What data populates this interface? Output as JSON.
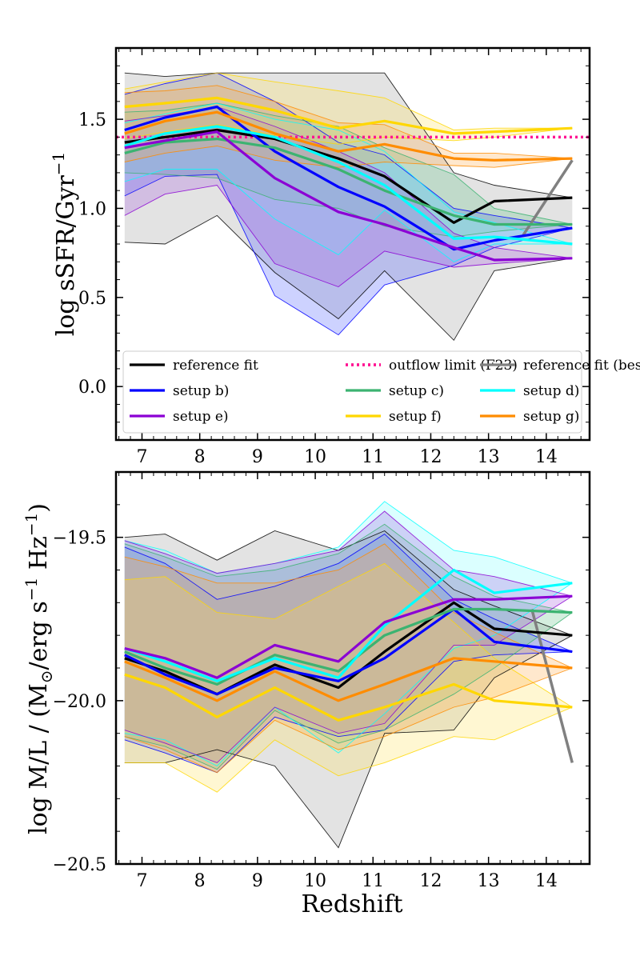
{
  "chart_data": [
    {
      "type": "line",
      "panel": "top",
      "ylabel": "log sSFR/Gyr⁻¹",
      "ylabel_main": "log sSFR/Gyr",
      "ylabel_sup": "−1",
      "xlabel": "",
      "xlim": [
        6.55,
        14.75
      ],
      "ylim": [
        -0.3,
        1.9
      ],
      "xticks": [
        7,
        8,
        9,
        10,
        11,
        12,
        13,
        14
      ],
      "xtick_labels": [
        "7",
        "8",
        "9",
        "10",
        "11",
        "12",
        "13",
        "14"
      ],
      "yticks": [
        0.0,
        0.5,
        1.0,
        1.5
      ],
      "ytick_labels": [
        "0.0",
        "0.5",
        "1.0",
        "1.5"
      ],
      "legend": {
        "position": "lower-left",
        "entries": [
          {
            "label": "reference fit",
            "color": "#000000",
            "style": "solid"
          },
          {
            "label": "outflow limit (F23)",
            "color": "#ff1493",
            "style": "dotted"
          },
          {
            "label": "reference fit (best-fit)",
            "color": "#808080",
            "style": "solid"
          },
          {
            "label": "setup b)",
            "color": "#0000ff",
            "style": "solid"
          },
          {
            "label": "setup c)",
            "color": "#3cb371",
            "style": "solid"
          },
          {
            "label": "setup d)",
            "color": "#00ffff",
            "style": "solid"
          },
          {
            "label": "setup e)",
            "color": "#8b00d4",
            "style": "solid"
          },
          {
            "label": "setup f)",
            "color": "#ffd700",
            "style": "solid"
          },
          {
            "label": "setup g)",
            "color": "#ff8c00",
            "style": "solid"
          }
        ]
      },
      "hline": {
        "name": "outflow limit (F23)",
        "y": 1.4,
        "color": "#ff1493"
      },
      "x": [
        6.7,
        7.4,
        8.3,
        9.3,
        10.4,
        11.2,
        12.4,
        13.1,
        14.45
      ],
      "series": [
        {
          "name": "reference fit",
          "color": "#000000",
          "fill": "#999999",
          "values": [
            1.37,
            1.4,
            1.44,
            1.39,
            1.28,
            1.18,
            0.92,
            1.04,
            1.06
          ],
          "lower": [
            0.81,
            0.8,
            0.96,
            0.64,
            0.38,
            0.65,
            0.26,
            0.65,
            0.72
          ],
          "upper": [
            1.76,
            1.74,
            1.76,
            1.76,
            1.76,
            1.76,
            1.2,
            1.13,
            1.06
          ]
        },
        {
          "name": "setup b)",
          "color": "#0000ff",
          "fill": "#4d5dff",
          "values": [
            1.44,
            1.51,
            1.57,
            1.32,
            1.12,
            1.01,
            0.77,
            0.82,
            0.89
          ],
          "lower": [
            1.07,
            1.18,
            1.19,
            0.51,
            0.29,
            0.57,
            0.68,
            0.78,
            0.89
          ],
          "upper": [
            1.64,
            1.7,
            1.76,
            1.6,
            1.37,
            1.3,
            1.0,
            0.96,
            0.89
          ]
        },
        {
          "name": "setup c)",
          "color": "#3cb371",
          "fill": "#66c28a",
          "values": [
            1.31,
            1.37,
            1.39,
            1.34,
            1.22,
            1.1,
            0.96,
            0.91,
            0.91
          ],
          "lower": [
            1.2,
            1.19,
            1.17,
            1.05,
            1.0,
            0.9,
            0.84,
            0.87,
            0.91
          ],
          "upper": [
            1.54,
            1.55,
            1.59,
            1.52,
            1.46,
            1.34,
            1.19,
            1.0,
            0.91
          ]
        },
        {
          "name": "setup d)",
          "color": "#00ffff",
          "fill": "#7fffff",
          "values": [
            1.35,
            1.42,
            1.46,
            1.4,
            1.26,
            1.13,
            0.83,
            0.84,
            0.8
          ],
          "lower": [
            1.15,
            1.22,
            1.22,
            0.94,
            0.74,
            0.99,
            0.7,
            0.8,
            0.8
          ],
          "upper": [
            1.48,
            1.53,
            1.59,
            1.5,
            1.44,
            1.32,
            0.98,
            0.92,
            0.8
          ]
        },
        {
          "name": "setup e)",
          "color": "#8b00d4",
          "fill": "#a45fe0",
          "values": [
            1.34,
            1.38,
            1.43,
            1.17,
            0.98,
            0.91,
            0.78,
            0.71,
            0.72
          ],
          "lower": [
            0.96,
            1.08,
            1.13,
            0.69,
            0.56,
            0.76,
            0.67,
            0.69,
            0.72
          ],
          "upper": [
            1.49,
            1.52,
            1.57,
            1.46,
            1.32,
            1.2,
            0.86,
            0.78,
            0.72
          ]
        },
        {
          "name": "setup f)",
          "color": "#ffd700",
          "fill": "#ffe45c",
          "values": [
            1.57,
            1.59,
            1.62,
            1.55,
            1.45,
            1.49,
            1.42,
            1.43,
            1.45
          ],
          "lower": [
            1.39,
            1.43,
            1.47,
            1.41,
            1.36,
            1.4,
            1.38,
            1.4,
            1.45
          ],
          "upper": [
            1.67,
            1.71,
            1.76,
            1.71,
            1.66,
            1.62,
            1.44,
            1.45,
            1.45
          ]
        },
        {
          "name": "setup g)",
          "color": "#ff8c00",
          "fill": "#ffad4d",
          "values": [
            1.42,
            1.49,
            1.54,
            1.42,
            1.32,
            1.36,
            1.28,
            1.27,
            1.28
          ],
          "lower": [
            1.26,
            1.31,
            1.35,
            1.27,
            1.23,
            1.26,
            1.24,
            1.23,
            1.28
          ],
          "upper": [
            1.65,
            1.66,
            1.69,
            1.6,
            1.48,
            1.47,
            1.31,
            1.31,
            1.28
          ]
        }
      ],
      "bestfit": {
        "name": "reference fit (best-fit)",
        "color": "#808080",
        "x": [
          13.6,
          14.45
        ],
        "y": [
          0.85,
          1.27
        ]
      }
    },
    {
      "type": "line",
      "panel": "bottom",
      "ylabel": "log M/L / (M☉/erg s⁻¹ Hz⁻¹)",
      "ylabel_main": "log M/L / (M",
      "ylabel_sun": "⊙",
      "ylabel_mid": "/erg s",
      "ylabel_sup1": "−1",
      "ylabel_hz": " Hz",
      "ylabel_sup2": "−1",
      "ylabel_close": ")",
      "xlabel": "Redshift",
      "xlim": [
        6.55,
        14.75
      ],
      "ylim": [
        -20.5,
        -19.3
      ],
      "xticks": [
        7,
        8,
        9,
        10,
        11,
        12,
        13,
        14
      ],
      "xtick_labels": [
        "7",
        "8",
        "9",
        "10",
        "11",
        "12",
        "13",
        "14"
      ],
      "yticks": [
        -20.5,
        -20.0,
        -19.5
      ],
      "ytick_labels": [
        "−20.5",
        "−20.0",
        "−19.5"
      ],
      "x": [
        6.7,
        7.4,
        8.3,
        9.3,
        10.4,
        11.2,
        12.4,
        13.1,
        14.45
      ],
      "series": [
        {
          "name": "reference fit",
          "color": "#000000",
          "fill": "#999999",
          "values": [
            -19.87,
            -19.91,
            -19.98,
            -19.89,
            -19.96,
            -19.85,
            -19.7,
            -19.78,
            -19.8
          ],
          "lower": [
            -20.19,
            -20.19,
            -20.15,
            -20.2,
            -20.45,
            -20.1,
            -20.09,
            -19.93,
            -19.8
          ],
          "upper": [
            -19.5,
            -19.49,
            -19.57,
            -19.48,
            -19.54,
            -19.48,
            -19.66,
            -19.71,
            -19.8
          ]
        },
        {
          "name": "setup b)",
          "color": "#0000ff",
          "fill": "#4d5dff",
          "values": [
            -19.86,
            -19.92,
            -19.98,
            -19.9,
            -19.94,
            -19.87,
            -19.72,
            -19.82,
            -19.85
          ],
          "lower": [
            -20.12,
            -20.16,
            -20.22,
            -20.05,
            -20.11,
            -20.09,
            -19.88,
            -19.86,
            -19.85
          ],
          "upper": [
            -19.53,
            -19.58,
            -19.69,
            -19.65,
            -19.58,
            -19.49,
            -19.69,
            -19.75,
            -19.85
          ]
        },
        {
          "name": "setup c)",
          "color": "#3cb371",
          "fill": "#66c28a",
          "values": [
            -19.85,
            -19.9,
            -19.95,
            -19.86,
            -19.91,
            -19.8,
            -19.72,
            -19.72,
            -19.73
          ],
          "lower": [
            -20.11,
            -20.14,
            -20.21,
            -20.03,
            -20.13,
            -20.09,
            -19.98,
            -19.9,
            -19.73
          ],
          "upper": [
            -19.52,
            -19.56,
            -19.62,
            -19.6,
            -19.55,
            -19.46,
            -19.62,
            -19.68,
            -19.73
          ]
        },
        {
          "name": "setup d)",
          "color": "#00ffff",
          "fill": "#7fffff",
          "values": [
            -19.84,
            -19.88,
            -19.94,
            -19.87,
            -19.93,
            -19.77,
            -19.6,
            -19.67,
            -19.64
          ],
          "lower": [
            -20.1,
            -20.12,
            -20.2,
            -20.02,
            -20.16,
            -20.04,
            -19.84,
            -19.8,
            -19.64
          ],
          "upper": [
            -19.51,
            -19.54,
            -19.61,
            -19.58,
            -19.53,
            -19.39,
            -19.54,
            -19.56,
            -19.64
          ]
        },
        {
          "name": "setup e)",
          "color": "#8b00d4",
          "fill": "#a45fe0",
          "values": [
            -19.84,
            -19.87,
            -19.93,
            -19.83,
            -19.88,
            -19.76,
            -19.69,
            -19.69,
            -19.68
          ],
          "lower": [
            -20.09,
            -20.13,
            -20.19,
            -20.02,
            -20.1,
            -20.07,
            -19.83,
            -19.83,
            -19.68
          ],
          "upper": [
            -19.51,
            -19.55,
            -19.61,
            -19.58,
            -19.54,
            -19.42,
            -19.6,
            -19.62,
            -19.68
          ]
        },
        {
          "name": "setup f)",
          "color": "#ffd700",
          "fill": "#ffe45c",
          "values": [
            -19.92,
            -19.96,
            -20.05,
            -19.96,
            -20.06,
            -20.02,
            -19.95,
            -20.0,
            -20.02
          ],
          "lower": [
            -20.19,
            -20.19,
            -20.28,
            -20.12,
            -20.23,
            -20.19,
            -20.11,
            -20.12,
            -20.02
          ],
          "upper": [
            -19.63,
            -19.62,
            -19.73,
            -19.75,
            -19.65,
            -19.58,
            -19.76,
            -19.87,
            -20.02
          ]
        },
        {
          "name": "setup g)",
          "color": "#ff8c00",
          "fill": "#ffad4d",
          "values": [
            -19.88,
            -19.93,
            -20.0,
            -19.91,
            -20.0,
            -19.95,
            -19.87,
            -19.88,
            -19.9
          ],
          "lower": [
            -20.11,
            -20.15,
            -20.22,
            -20.06,
            -20.15,
            -20.11,
            -20.02,
            -19.99,
            -19.9
          ],
          "upper": [
            -19.56,
            -19.59,
            -19.64,
            -19.64,
            -19.6,
            -19.52,
            -19.73,
            -19.79,
            -19.9
          ]
        }
      ],
      "bestfit": {
        "name": "reference fit (best-fit)",
        "color": "#808080",
        "x": [
          13.75,
          14.45
        ],
        "y": [
          -19.72,
          -20.19
        ]
      }
    }
  ]
}
